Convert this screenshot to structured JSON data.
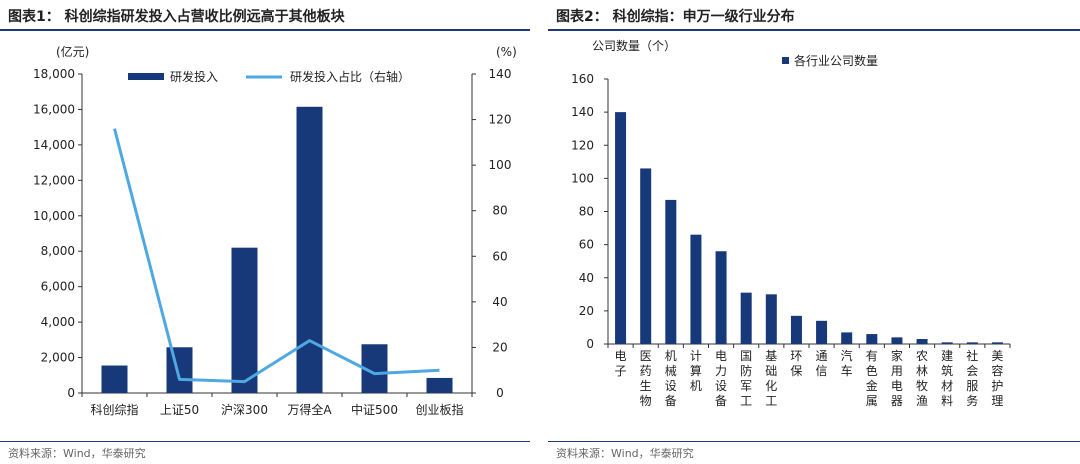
{
  "left_panel": {
    "title": "图表1：  科创综指研发投入占营收比例远高于其他板块",
    "source": "资料来源：Wind，华泰研究"
  },
  "right_panel": {
    "title": "图表2：  科创综指：申万一级行业分布",
    "source": "资料来源：Wind，华泰研究"
  },
  "chart_data": [
    {
      "type": "bar",
      "categories": [
        "科创综指",
        "上证50",
        "沪深300",
        "万得全A",
        "中证500",
        "创业板指"
      ],
      "series": [
        {
          "name": "研发投入",
          "type": "bar",
          "axis": "left",
          "color": "#17397a",
          "values": [
            1550,
            2580,
            8200,
            16150,
            2750,
            850
          ]
        },
        {
          "name": "研发投入占比（右轴）",
          "type": "line",
          "axis": "right",
          "color": "#4ea8e2",
          "values": [
            116,
            6,
            5,
            23,
            8.5,
            10
          ]
        }
      ],
      "y_left_unit": "(亿元)",
      "y_right_unit": "(%)",
      "y_left_ticks": [
        "0",
        "2,000",
        "4,000",
        "6,000",
        "8,000",
        "10,000",
        "12,000",
        "14,000",
        "16,000",
        "18,000"
      ],
      "y_right_ticks": [
        "0",
        "20",
        "40",
        "60",
        "80",
        "100",
        "120",
        "140"
      ],
      "ylim_left": [
        0,
        18000
      ],
      "ylim_right": [
        0,
        140
      ],
      "legend_position": "top",
      "grid": false
    },
    {
      "type": "bar",
      "categories": [
        "电子",
        "医药生物",
        "机械设备",
        "计算机",
        "电力设备",
        "国防军工",
        "基础化工",
        "环保",
        "通信",
        "汽车",
        "有色金属",
        "家用电器",
        "农林牧渔",
        "建筑材料",
        "社会服务",
        "美容护理"
      ],
      "series": [
        {
          "name": "各行业公司数量",
          "color": "#17397a",
          "values": [
            140,
            106,
            87,
            66,
            56,
            31,
            30,
            17,
            14,
            7,
            6,
            4,
            3,
            1,
            1,
            1
          ]
        }
      ],
      "y_unit": "公司数量（个）",
      "y_ticks": [
        "0",
        "20",
        "40",
        "60",
        "80",
        "100",
        "120",
        "140",
        "160"
      ],
      "ylim": [
        0,
        160
      ],
      "legend_position": "top",
      "grid": false
    }
  ]
}
